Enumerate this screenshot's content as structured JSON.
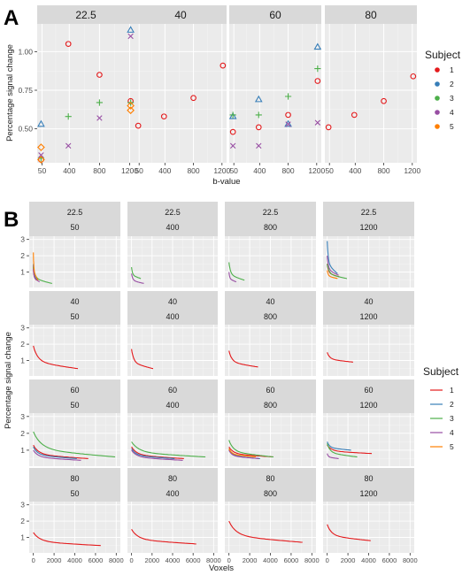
{
  "panel_labels": {
    "a": "A",
    "b": "B"
  },
  "legend": {
    "title": "Subject",
    "entries": [
      "1",
      "2",
      "3",
      "4",
      "5"
    ],
    "colors": [
      "#e41a1c",
      "#377eb8",
      "#4daf4a",
      "#984ea3",
      "#ff7f00"
    ],
    "shapes": [
      "circle",
      "triangle",
      "plus",
      "cross",
      "diamond"
    ]
  },
  "chart_data": [
    {
      "type": "scatter",
      "panel": "A",
      "xlabel": "b-value",
      "ylabel": "Percentage signal change",
      "facet_by": "angle",
      "facets": [
        "22.5",
        "40",
        "60",
        "80"
      ],
      "x_ticks": [
        "50",
        "400",
        "800",
        "1200"
      ],
      "y_ticks": [
        0.5,
        0.75,
        1.0
      ],
      "y_tick_labels": [
        "0.50",
        "0.75",
        "1.00"
      ],
      "xlim": [
        0,
        1250
      ],
      "ylim": [
        0.28,
        1.18
      ],
      "grid": true,
      "legend": "right",
      "points": [
        {
          "facet": "22.5",
          "subject": "1",
          "x": 50,
          "y": 0.3
        },
        {
          "facet": "22.5",
          "subject": "1",
          "x": 400,
          "y": 1.05
        },
        {
          "facet": "22.5",
          "subject": "1",
          "x": 800,
          "y": 0.85
        },
        {
          "facet": "22.5",
          "subject": "1",
          "x": 1200,
          "y": 0.68
        },
        {
          "facet": "22.5",
          "subject": "2",
          "x": 50,
          "y": 0.53
        },
        {
          "facet": "22.5",
          "subject": "2",
          "x": 1200,
          "y": 1.14
        },
        {
          "facet": "22.5",
          "subject": "3",
          "x": 50,
          "y": 0.31
        },
        {
          "facet": "22.5",
          "subject": "3",
          "x": 400,
          "y": 0.58
        },
        {
          "facet": "22.5",
          "subject": "3",
          "x": 800,
          "y": 0.67
        },
        {
          "facet": "22.5",
          "subject": "3",
          "x": 1200,
          "y": 0.67
        },
        {
          "facet": "22.5",
          "subject": "4",
          "x": 50,
          "y": 0.33
        },
        {
          "facet": "22.5",
          "subject": "4",
          "x": 400,
          "y": 0.39
        },
        {
          "facet": "22.5",
          "subject": "4",
          "x": 800,
          "y": 0.57
        },
        {
          "facet": "22.5",
          "subject": "4",
          "x": 1200,
          "y": 1.1
        },
        {
          "facet": "22.5",
          "subject": "5",
          "x": 50,
          "y": 0.38
        },
        {
          "facet": "22.5",
          "subject": "5",
          "x": 50,
          "y": 0.3
        },
        {
          "facet": "22.5",
          "subject": "5",
          "x": 1200,
          "y": 0.65
        },
        {
          "facet": "22.5",
          "subject": "5",
          "x": 1200,
          "y": 0.62
        },
        {
          "facet": "40",
          "subject": "1",
          "x": 50,
          "y": 0.52
        },
        {
          "facet": "40",
          "subject": "1",
          "x": 400,
          "y": 0.58
        },
        {
          "facet": "40",
          "subject": "1",
          "x": 800,
          "y": 0.7
        },
        {
          "facet": "40",
          "subject": "1",
          "x": 1200,
          "y": 0.91
        },
        {
          "facet": "60",
          "subject": "1",
          "x": 50,
          "y": 0.48
        },
        {
          "facet": "60",
          "subject": "1",
          "x": 400,
          "y": 0.51
        },
        {
          "facet": "60",
          "subject": "1",
          "x": 800,
          "y": 0.59
        },
        {
          "facet": "60",
          "subject": "1",
          "x": 1200,
          "y": 0.81
        },
        {
          "facet": "60",
          "subject": "2",
          "x": 50,
          "y": 0.58
        },
        {
          "facet": "60",
          "subject": "2",
          "x": 400,
          "y": 0.69
        },
        {
          "facet": "60",
          "subject": "2",
          "x": 800,
          "y": 0.53
        },
        {
          "facet": "60",
          "subject": "2",
          "x": 1200,
          "y": 1.03
        },
        {
          "facet": "60",
          "subject": "3",
          "x": 50,
          "y": 0.59
        },
        {
          "facet": "60",
          "subject": "3",
          "x": 400,
          "y": 0.59
        },
        {
          "facet": "60",
          "subject": "3",
          "x": 800,
          "y": 0.71
        },
        {
          "facet": "60",
          "subject": "3",
          "x": 1200,
          "y": 0.89
        },
        {
          "facet": "60",
          "subject": "4",
          "x": 50,
          "y": 0.39
        },
        {
          "facet": "60",
          "subject": "4",
          "x": 400,
          "y": 0.39
        },
        {
          "facet": "60",
          "subject": "4",
          "x": 800,
          "y": 0.53
        },
        {
          "facet": "60",
          "subject": "4",
          "x": 1200,
          "y": 0.54
        },
        {
          "facet": "80",
          "subject": "1",
          "x": 50,
          "y": 0.51
        },
        {
          "facet": "80",
          "subject": "1",
          "x": 400,
          "y": 0.59
        },
        {
          "facet": "80",
          "subject": "1",
          "x": 800,
          "y": 0.68
        },
        {
          "facet": "80",
          "subject": "1",
          "x": 1200,
          "y": 0.84
        }
      ]
    },
    {
      "type": "line",
      "panel": "B",
      "xlabel": "Voxels",
      "ylabel": "Percentage signal change",
      "facet_rows": [
        "22.5",
        "40",
        "60",
        "80"
      ],
      "facet_cols": [
        "50",
        "400",
        "800",
        "1200"
      ],
      "x_ticks": [
        0,
        2000,
        4000,
        6000,
        8000
      ],
      "y_ticks": [
        1,
        2,
        3
      ],
      "xlim": [
        -400,
        8400
      ],
      "ylim": [
        0.05,
        3.2
      ],
      "grid": true,
      "legend": "right",
      "series": [
        {
          "row": "22.5",
          "col": "50",
          "subject": "1",
          "n": 300,
          "start": 1.4,
          "end": 0.5
        },
        {
          "row": "22.5",
          "col": "50",
          "subject": "2",
          "n": 400,
          "start": 1.5,
          "end": 0.5
        },
        {
          "row": "22.5",
          "col": "50",
          "subject": "3",
          "n": 1800,
          "start": 1.3,
          "end": 0.3
        },
        {
          "row": "22.5",
          "col": "50",
          "subject": "4",
          "n": 600,
          "start": 1.2,
          "end": 0.4
        },
        {
          "row": "22.5",
          "col": "50",
          "subject": "5",
          "n": 450,
          "start": 2.2,
          "end": 0.5
        },
        {
          "row": "22.5",
          "col": "400",
          "subject": "3",
          "n": 900,
          "start": 1.3,
          "end": 0.6
        },
        {
          "row": "22.5",
          "col": "400",
          "subject": "4",
          "n": 1200,
          "start": 0.9,
          "end": 0.3
        },
        {
          "row": "22.5",
          "col": "800",
          "subject": "3",
          "n": 1500,
          "start": 1.6,
          "end": 0.5
        },
        {
          "row": "22.5",
          "col": "800",
          "subject": "4",
          "n": 700,
          "start": 1.0,
          "end": 0.4
        },
        {
          "row": "22.5",
          "col": "1200",
          "subject": "1",
          "n": 1200,
          "start": 1.5,
          "end": 0.7
        },
        {
          "row": "22.5",
          "col": "1200",
          "subject": "2",
          "n": 1000,
          "start": 2.9,
          "end": 0.9
        },
        {
          "row": "22.5",
          "col": "1200",
          "subject": "3",
          "n": 1900,
          "start": 1.5,
          "end": 0.6
        },
        {
          "row": "22.5",
          "col": "1200",
          "subject": "4",
          "n": 1100,
          "start": 2.0,
          "end": 0.8
        },
        {
          "row": "22.5",
          "col": "1200",
          "subject": "5",
          "n": 1000,
          "start": 1.1,
          "end": 0.6
        },
        {
          "row": "40",
          "col": "50",
          "subject": "1",
          "n": 4300,
          "start": 1.9,
          "end": 0.5
        },
        {
          "row": "40",
          "col": "400",
          "subject": "1",
          "n": 2100,
          "start": 1.7,
          "end": 0.5
        },
        {
          "row": "40",
          "col": "800",
          "subject": "1",
          "n": 2800,
          "start": 1.6,
          "end": 0.6
        },
        {
          "row": "40",
          "col": "1200",
          "subject": "1",
          "n": 2500,
          "start": 1.5,
          "end": 0.9
        },
        {
          "row": "60",
          "col": "50",
          "subject": "1",
          "n": 5300,
          "start": 1.3,
          "end": 0.5
        },
        {
          "row": "60",
          "col": "50",
          "subject": "2",
          "n": 4200,
          "start": 1.2,
          "end": 0.5
        },
        {
          "row": "60",
          "col": "50",
          "subject": "3",
          "n": 7900,
          "start": 2.1,
          "end": 0.6
        },
        {
          "row": "60",
          "col": "50",
          "subject": "4",
          "n": 4600,
          "start": 1.0,
          "end": 0.4
        },
        {
          "row": "60",
          "col": "400",
          "subject": "1",
          "n": 5100,
          "start": 1.2,
          "end": 0.5
        },
        {
          "row": "60",
          "col": "400",
          "subject": "2",
          "n": 4200,
          "start": 1.1,
          "end": 0.5
        },
        {
          "row": "60",
          "col": "400",
          "subject": "3",
          "n": 7200,
          "start": 1.5,
          "end": 0.6
        },
        {
          "row": "60",
          "col": "400",
          "subject": "4",
          "n": 5000,
          "start": 1.0,
          "end": 0.4
        },
        {
          "row": "60",
          "col": "800",
          "subject": "1",
          "n": 4300,
          "start": 1.2,
          "end": 0.6
        },
        {
          "row": "60",
          "col": "800",
          "subject": "2",
          "n": 3000,
          "start": 1.1,
          "end": 0.5
        },
        {
          "row": "60",
          "col": "800",
          "subject": "3",
          "n": 4300,
          "start": 1.6,
          "end": 0.6
        },
        {
          "row": "60",
          "col": "800",
          "subject": "4",
          "n": 2900,
          "start": 1.0,
          "end": 0.5
        },
        {
          "row": "60",
          "col": "800",
          "subject": "5",
          "n": 2600,
          "start": 1.1,
          "end": 0.6
        },
        {
          "row": "60",
          "col": "1200",
          "subject": "1",
          "n": 4300,
          "start": 1.3,
          "end": 0.8
        },
        {
          "row": "60",
          "col": "1200",
          "subject": "2",
          "n": 2300,
          "start": 1.5,
          "end": 1.0
        },
        {
          "row": "60",
          "col": "1200",
          "subject": "3",
          "n": 2900,
          "start": 1.4,
          "end": 0.6
        },
        {
          "row": "60",
          "col": "1200",
          "subject": "4",
          "n": 1100,
          "start": 0.8,
          "end": 0.5
        },
        {
          "row": "80",
          "col": "50",
          "subject": "1",
          "n": 6500,
          "start": 1.3,
          "end": 0.5
        },
        {
          "row": "80",
          "col": "400",
          "subject": "1",
          "n": 6300,
          "start": 1.5,
          "end": 0.6
        },
        {
          "row": "80",
          "col": "800",
          "subject": "1",
          "n": 7100,
          "start": 2.0,
          "end": 0.7
        },
        {
          "row": "80",
          "col": "1200",
          "subject": "1",
          "n": 4200,
          "start": 1.8,
          "end": 0.8
        }
      ]
    }
  ]
}
